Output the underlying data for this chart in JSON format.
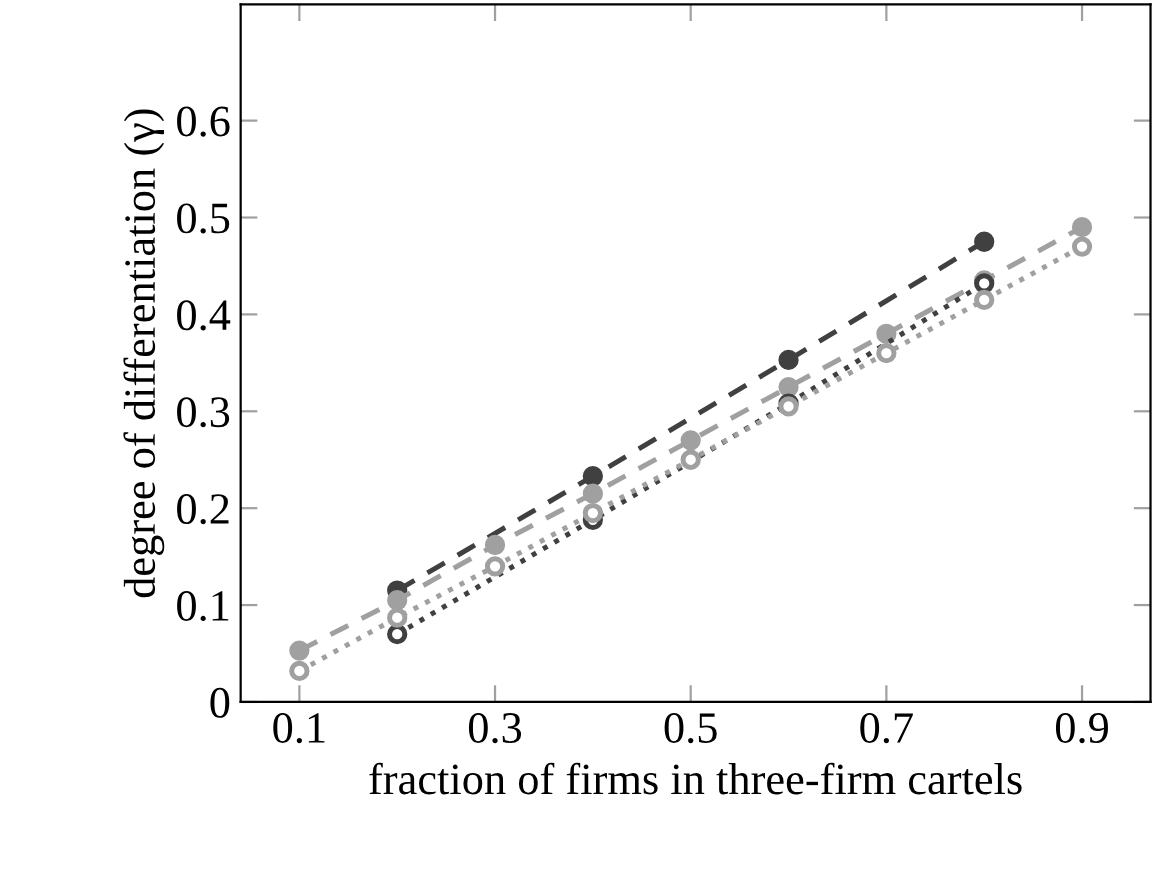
{
  "chart_data": {
    "type": "line",
    "xlabel": "fraction of firms in three-firm cartels",
    "ylabel": "degree of differentiation (γ)",
    "xlim": [
      0.04,
      0.97
    ],
    "ylim": [
      0,
      0.72
    ],
    "xticks": [
      0.1,
      0.3,
      0.5,
      0.7,
      0.9
    ],
    "yticks": [
      0,
      0.1,
      0.2,
      0.3,
      0.4,
      0.5,
      0.6
    ],
    "grid": false,
    "legend": false,
    "series": [
      {
        "color": "#404040",
        "x": [
          0.2,
          0.4,
          0.6,
          0.8
        ],
        "values": [
          0.115,
          0.233,
          0.353,
          0.475
        ],
        "marker": "circle",
        "line_style": "dashed"
      },
      {
        "color": "#a0a0a0",
        "x": [
          0.1,
          0.2,
          0.3,
          0.4,
          0.5,
          0.6,
          0.7,
          0.8,
          0.9
        ],
        "values": [
          0.053,
          0.105,
          0.162,
          0.215,
          0.27,
          0.325,
          0.38,
          0.435,
          0.49
        ],
        "marker": "circle",
        "line_style": "dashed"
      },
      {
        "color": "#404040",
        "x": [
          0.2,
          0.4,
          0.6,
          0.8
        ],
        "values": [
          0.07,
          0.188,
          0.308,
          0.432
        ],
        "marker": "circle",
        "line_style": "dotted"
      },
      {
        "color": "#a0a0a0",
        "x": [
          0.1,
          0.2,
          0.3,
          0.4,
          0.5,
          0.6,
          0.7,
          0.8,
          0.9
        ],
        "values": [
          0.032,
          0.087,
          0.14,
          0.195,
          0.25,
          0.305,
          0.36,
          0.415,
          0.47
        ],
        "marker": "circle",
        "line_style": "dotted"
      }
    ]
  }
}
